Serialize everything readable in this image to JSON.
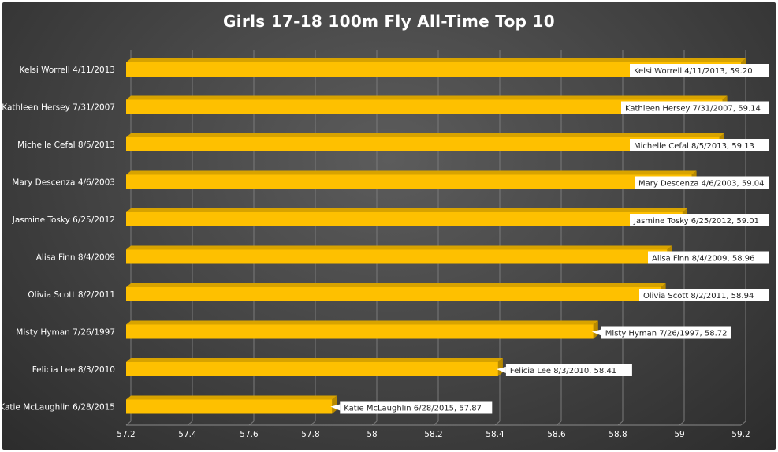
{
  "chart_data": {
    "type": "bar",
    "orientation": "horizontal",
    "title": "Girls 17-18 100m Fly All-Time Top 10",
    "categories": [
      "Kelsi Worrell 4/11/2013",
      "Kathleen Hersey 7/31/2007",
      "Michelle Cefal 8/5/2013",
      "Mary Descenza 4/6/2003",
      "Jasmine Tosky 6/25/2012",
      "Alisa Finn 8/4/2009",
      "Olivia Scott 8/2/2011",
      "Misty Hyman 7/26/1997",
      "Felicia Lee 8/3/2010",
      "Katie McLaughlin 6/28/2015"
    ],
    "values": [
      59.2,
      59.14,
      59.13,
      59.04,
      59.01,
      58.96,
      58.94,
      58.72,
      58.41,
      57.87
    ],
    "data_labels": [
      "Kelsi Worrell 4/11/2013, 59.20",
      "Kathleen Hersey 7/31/2007, 59.14",
      "Michelle Cefal 8/5/2013, 59.13",
      "Mary Descenza 4/6/2003, 59.04",
      "Jasmine Tosky 6/25/2012, 59.01",
      "Alisa Finn 8/4/2009, 58.96",
      "Olivia Scott 8/2/2011, 58.94",
      "Misty Hyman 7/26/1997, 58.72",
      "Felicia Lee 8/3/2010, 58.41",
      "Katie McLaughlin 6/28/2015, 57.87"
    ],
    "xlim": [
      57.2,
      59.2
    ],
    "x_ticks": [
      "57.2",
      "57.4",
      "57.6",
      "57.8",
      "58",
      "58.2",
      "58.4",
      "58.6",
      "58.8",
      "59",
      "59.2"
    ],
    "grid": true,
    "bar_style": "3d",
    "colors": {
      "bar_front": "#fec000",
      "bar_top": "#d8a300",
      "background": "#454545",
      "gridline": "#7a7a7a",
      "text": "#ffffff",
      "label_box": "#ffffff"
    }
  }
}
